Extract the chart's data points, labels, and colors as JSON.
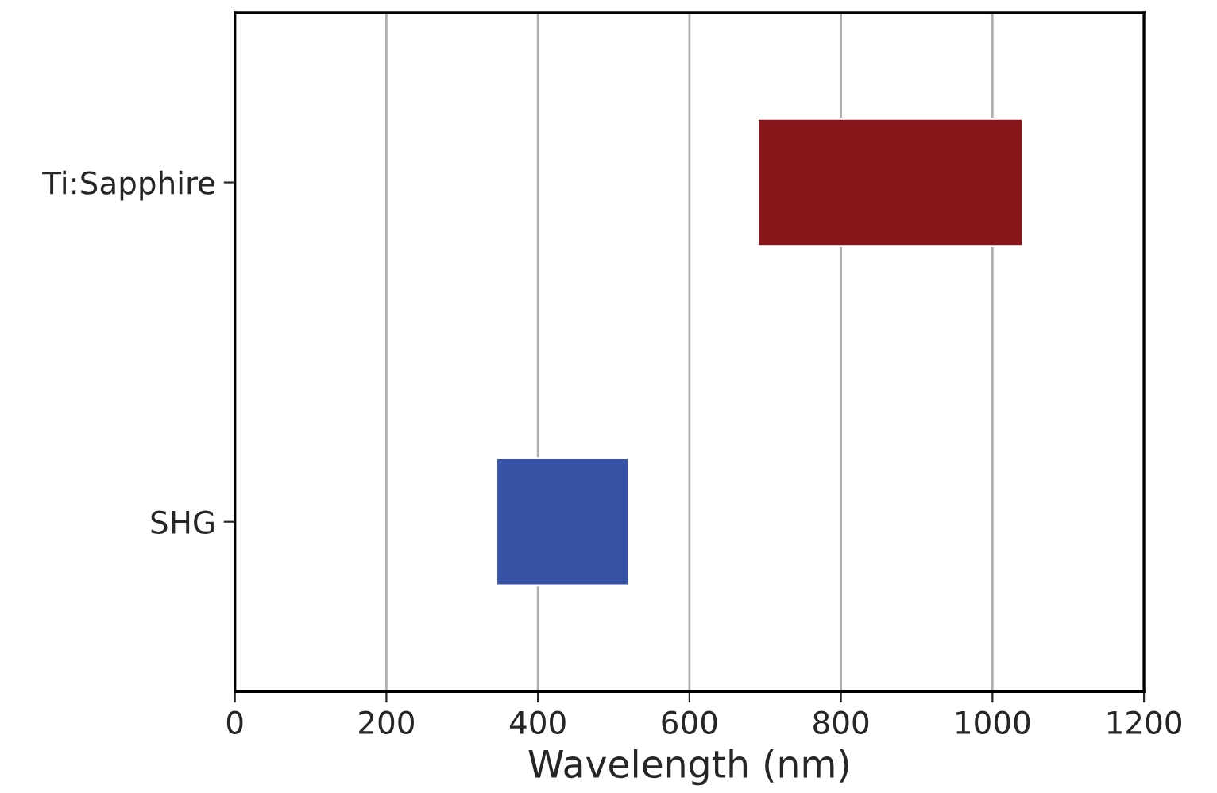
{
  "chart_data": {
    "type": "bar",
    "orientation": "horizontal",
    "xlabel": "Wavelength (nm)",
    "categories": [
      "Ti:Sapphire",
      "SHG"
    ],
    "base": [
      690,
      345
    ],
    "values": [
      350,
      175
    ],
    "colors": [
      "#86161a",
      "#3653a5"
    ],
    "xlim": [
      0,
      1200
    ],
    "xticks": [
      0,
      200,
      400,
      600,
      800,
      1000,
      1200
    ],
    "grid": "x"
  }
}
